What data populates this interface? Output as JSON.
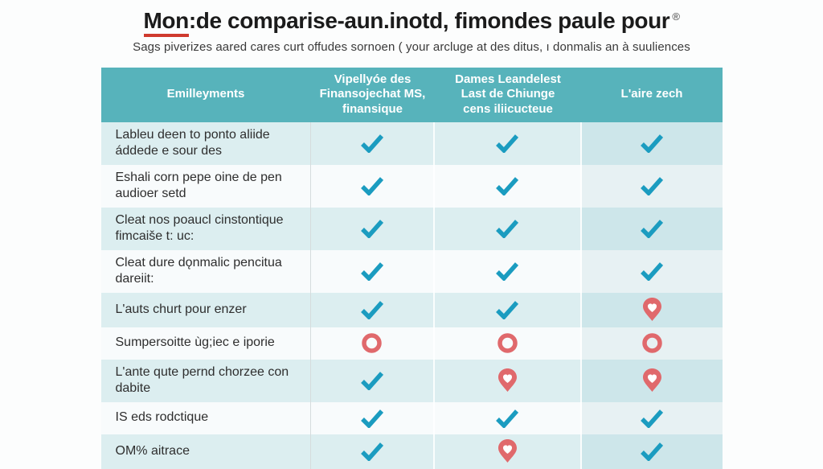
{
  "header": {
    "title_underlined": "Mon",
    "title_rest": ":de comparise-aun.inotd, fimondes paule pour",
    "trademark": "®",
    "subtitle": "Sags piverizes aared cares curt offudes sornoen ( your arcluge at des ditus, ı donmalis an à suuliences"
  },
  "colors": {
    "header_bg": "#57b3bb",
    "check": "#1b9cc0",
    "negative": "#e0696c",
    "underline_red": "#cf3a2e",
    "row_teal": "#dceef0",
    "row_light": "#f8fbfc",
    "highlight_col_teal": "#cde6ea",
    "highlight_col_light": "#e7f1f3"
  },
  "chart_data": {
    "type": "table",
    "title": "Mon:de comparise-aun.inotd, fimondes paule pour ®",
    "subtitle": "Sags piverizes aared cares curt offudes sornoen ( your arcluge at des ditus, ı donmalis an à suuliences",
    "columns": [
      "Emilleyments",
      "Vipellyóe des\nFinansojechat MS,\nfinansique",
      "Dames Leandelest\nLast de Chiunge\ncens iliicucteue",
      "L'aire zech"
    ],
    "rows": [
      {
        "label": "Lableu deen to ponto aliide áddede e sour des",
        "marks": [
          "check",
          "check",
          "check"
        ]
      },
      {
        "label": "Eshali corn pepe oine de pen audioer setd",
        "marks": [
          "check",
          "check",
          "check"
        ]
      },
      {
        "label": "Cleat nos poaucl cinstontique fimcaiše t: uc:",
        "marks": [
          "check",
          "check",
          "check"
        ]
      },
      {
        "label": "Cleat dure dǫnmalic pencitua dareiit:",
        "marks": [
          "check",
          "check",
          "check"
        ]
      },
      {
        "label": "L'auts churt pour enzer",
        "marks": [
          "check",
          "check",
          "pin"
        ]
      },
      {
        "label": "Sumpersoitte ùg;iec e iporie",
        "marks": [
          "circle",
          "circle",
          "circle"
        ]
      },
      {
        "label": "L'ante qute pernd chorzee con dabite",
        "marks": [
          "check",
          "pin",
          "pin"
        ]
      },
      {
        "label": "IS eds rodctique",
        "marks": [
          "check",
          "check",
          "check"
        ]
      },
      {
        "label": "OM% aitrace",
        "marks": [
          "check",
          "pin",
          "check"
        ]
      }
    ],
    "mark_glyphs": {
      "check": "teal checkmark",
      "circle": "red ring",
      "pin": "red map-pin"
    },
    "legend_position": "none",
    "grid": "alternating row stripes, highlighted last column"
  }
}
